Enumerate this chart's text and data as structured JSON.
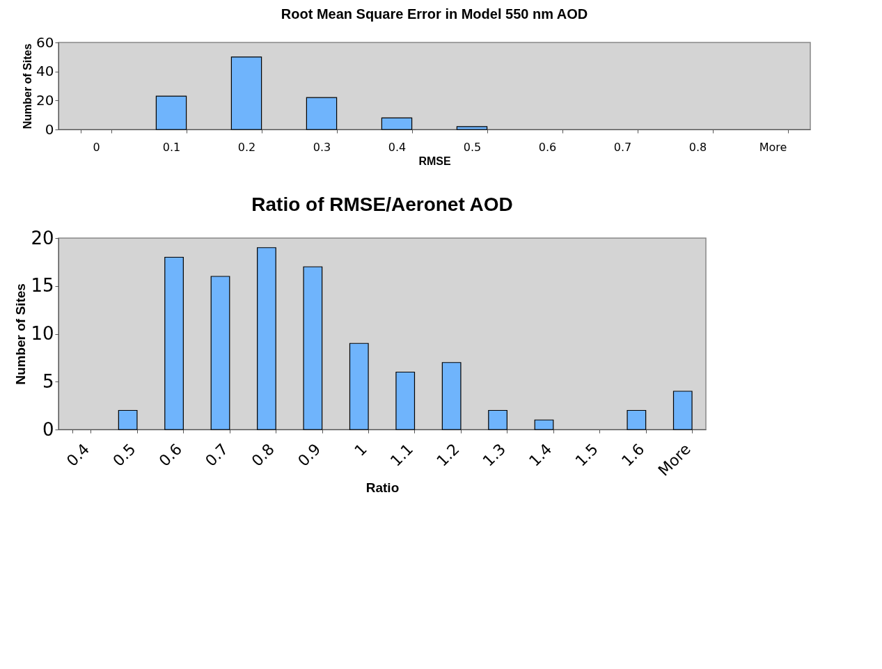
{
  "chart_data": [
    {
      "type": "bar",
      "title": "Root Mean Square Error in Model 550 nm AOD",
      "xlabel": "RMSE",
      "ylabel": "Number of Sites",
      "categories": [
        "0",
        "0.1",
        "0.2",
        "0.3",
        "0.4",
        "0.5",
        "0.6",
        "0.7",
        "0.8",
        "More"
      ],
      "series": [
        {
          "color": "#6fb4fc",
          "values": [
            0,
            23,
            50,
            22,
            8,
            2,
            0,
            0,
            0,
            0
          ]
        }
      ],
      "ylim": [
        0,
        60
      ],
      "yticks": [
        0,
        20,
        40,
        60
      ],
      "grid": false,
      "legend": false
    },
    {
      "type": "bar",
      "title": "Ratio of RMSE/Aeronet AOD",
      "xlabel": "Ratio",
      "ylabel": "Number of Sites",
      "categories": [
        "0.4",
        "0.5",
        "0.6",
        "0.7",
        "0.8",
        "0.9",
        "1",
        "1.1",
        "1.2",
        "1.3",
        "1.4",
        "1.5",
        "1.6",
        "More"
      ],
      "series": [
        {
          "color": "#6fb4fc",
          "values": [
            0,
            2,
            18,
            16,
            19,
            17,
            9,
            6,
            7,
            2,
            1,
            0,
            2,
            4
          ]
        }
      ],
      "ylim": [
        0,
        20
      ],
      "yticks": [
        0,
        5,
        10,
        15,
        20
      ],
      "grid": false,
      "legend": false
    }
  ]
}
